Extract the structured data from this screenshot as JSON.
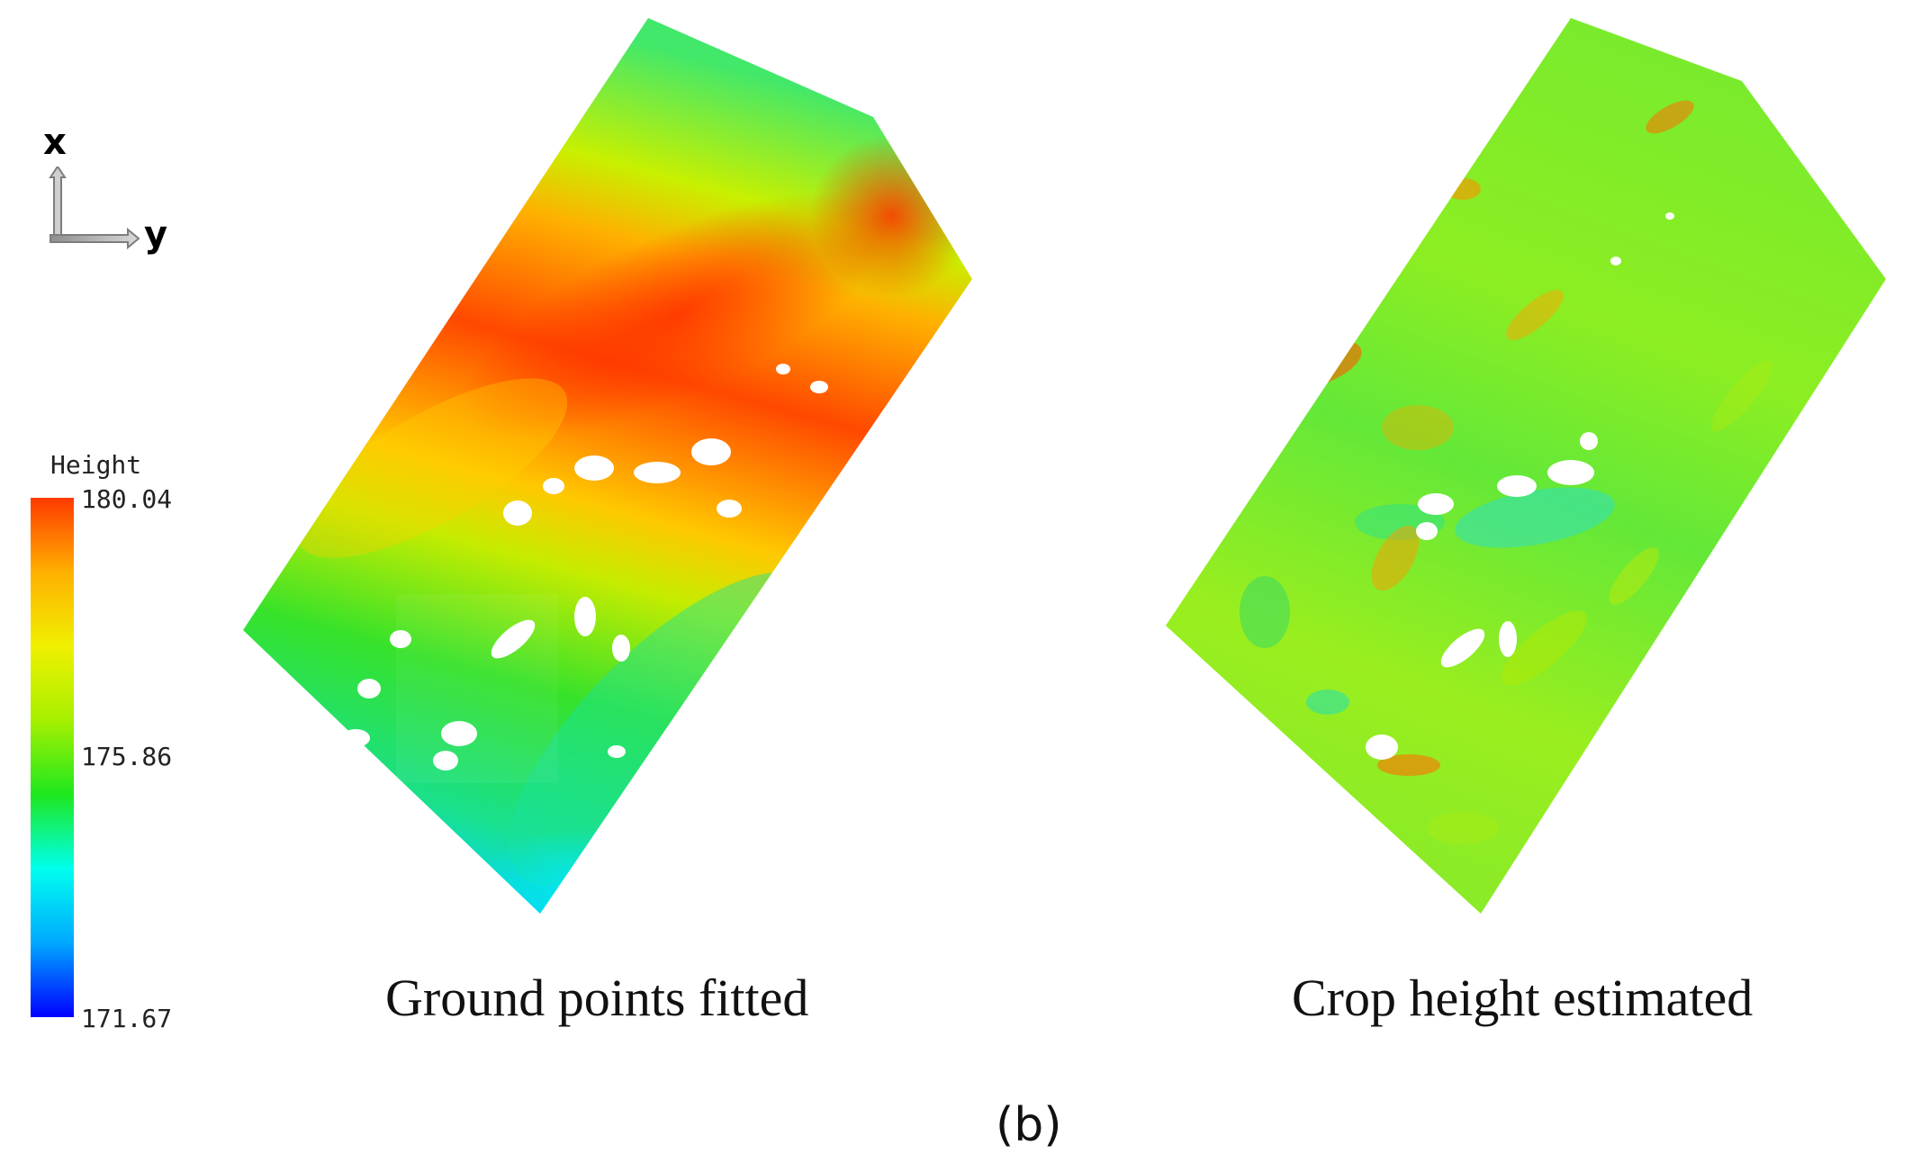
{
  "axes_icon": {
    "x_label": "x",
    "y_label": "y"
  },
  "colorbar": {
    "title": "Height",
    "max_label": "180.04",
    "mid_label": "175.86",
    "min_label": "171.67",
    "stops": [
      "#ff3a00",
      "#ffb000",
      "#f0f000",
      "#a6f000",
      "#1ee81e",
      "#00ffee",
      "#00a8ff",
      "#0000ff"
    ]
  },
  "panels": [
    {
      "caption": "Ground points fitted"
    },
    {
      "caption": "Crop height estimated"
    }
  ],
  "figure_label": "(b)"
}
